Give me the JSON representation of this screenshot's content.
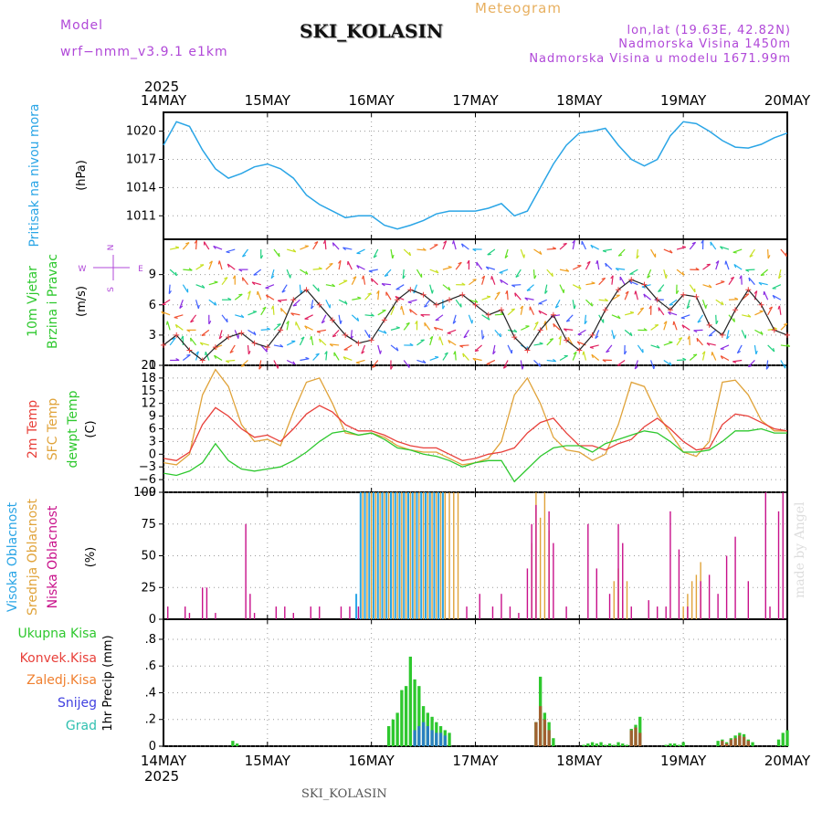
{
  "header": {
    "model_label": "Model",
    "model": "wrf−nmm_v3.9.1  e1km",
    "title": "SKI_KOLASIN",
    "meteogram": "Meteogram",
    "lonlat": "lon,lat (19.63E, 42.82N)",
    "elevation": "Nadmorska Visina 1450m",
    "model_elevation": "Nadmorska Visina u modelu 1671.99m",
    "footer": "SKI_KOLASIN",
    "credit": "made by Angel"
  },
  "colors": {
    "pressure": "#2aa5e6",
    "temp2m": "#e8403a",
    "sfc_temp": "#e0a33a",
    "dewpoint": "#2ec82e",
    "cloud_high": "#2aa5e6",
    "cloud_mid": "#e0a33a",
    "cloud_low": "#c8108a",
    "precip_total": "#2ec82e",
    "precip_conv": "#e8403a",
    "precip_frozen": "#f08030",
    "snow": "#4040e0",
    "graupel": "#30c0b0",
    "wind_speed": "#222222",
    "purple_label": "#b048d8"
  },
  "time_axis": {
    "year": "2025",
    "ticks": [
      "14MAY",
      "15MAY",
      "16MAY",
      "17MAY",
      "18MAY",
      "19MAY",
      "20MAY"
    ],
    "hours": 144
  },
  "chart_data": [
    {
      "type": "line",
      "name": "pressure",
      "label": "Pritisak na nivou mora",
      "unit": "(hPa)",
      "ylim": [
        1008.5,
        1022
      ],
      "yticks": [
        1011,
        1014,
        1017,
        1020
      ],
      "grid": true,
      "series": [
        {
          "name": "Pritisak na nivou mora",
          "x": [
            0,
            3,
            6,
            9,
            12,
            15,
            18,
            21,
            24,
            27,
            30,
            33,
            36,
            39,
            42,
            45,
            48,
            51,
            54,
            57,
            60,
            63,
            66,
            69,
            72,
            75,
            78,
            81,
            84,
            87,
            90,
            93,
            96,
            99,
            102,
            105,
            108,
            111,
            114,
            117,
            120,
            123,
            126,
            129,
            132,
            135,
            138,
            141,
            144
          ],
          "values": [
            1018.5,
            1021.0,
            1020.5,
            1018.0,
            1016.0,
            1015.0,
            1015.5,
            1016.2,
            1016.5,
            1016.0,
            1015.0,
            1013.2,
            1012.2,
            1011.5,
            1010.8,
            1011.0,
            1011.0,
            1010.0,
            1009.6,
            1010.0,
            1010.5,
            1011.2,
            1011.5,
            1011.5,
            1011.5,
            1011.8,
            1012.3,
            1011.0,
            1011.5,
            1014.0,
            1016.5,
            1018.5,
            1019.8,
            1020.0,
            1020.3,
            1018.5,
            1017.0,
            1016.3,
            1017.0,
            1019.5,
            1021.0,
            1020.8,
            1020.0,
            1019.0,
            1018.3,
            1018.2,
            1018.6,
            1019.3,
            1019.8
          ]
        }
      ]
    },
    {
      "type": "line",
      "name": "wind",
      "label_1": "10m Vjetar",
      "label_2": "Brzina i Pravac",
      "unit": "(m/s)",
      "compass": [
        "N",
        "W",
        "E",
        "S"
      ],
      "ylim": [
        0,
        12.5
      ],
      "yticks": [
        0,
        3,
        6,
        9
      ],
      "grid": true,
      "series": [
        {
          "name": "Brzina",
          "x": [
            0,
            3,
            6,
            9,
            12,
            15,
            18,
            21,
            24,
            27,
            30,
            33,
            36,
            39,
            42,
            45,
            48,
            51,
            54,
            57,
            60,
            63,
            66,
            69,
            72,
            75,
            78,
            81,
            84,
            87,
            90,
            93,
            96,
            99,
            102,
            105,
            108,
            111,
            114,
            117,
            120,
            123,
            126,
            129,
            132,
            135,
            138,
            141,
            144
          ],
          "values": [
            2.0,
            3.0,
            1.5,
            0.5,
            1.8,
            2.8,
            3.2,
            2.2,
            1.8,
            3.5,
            6.5,
            7.5,
            6.0,
            4.5,
            3.0,
            2.2,
            2.5,
            4.5,
            6.5,
            7.5,
            7.0,
            6.0,
            6.5,
            7.0,
            6.0,
            5.0,
            5.5,
            2.8,
            1.5,
            3.5,
            5.0,
            2.5,
            1.5,
            3.0,
            5.5,
            7.5,
            8.5,
            8.0,
            6.5,
            5.5,
            7.0,
            6.8,
            4.0,
            3.0,
            5.5,
            7.5,
            6.0,
            3.5,
            3.0
          ]
        }
      ],
      "arrow_columns": 48
    },
    {
      "type": "line",
      "name": "temperature",
      "label_1": "2m Temp",
      "label_2": "SFC Temp",
      "label_3": "dewpt Temp",
      "unit": "(C)",
      "ylim": [
        -9,
        21
      ],
      "yticks": [
        -9,
        -6,
        -3,
        0,
        3,
        6,
        9,
        12,
        15,
        18,
        21
      ],
      "grid": true,
      "series": [
        {
          "name": "2m Temp",
          "x": [
            0,
            3,
            6,
            9,
            12,
            15,
            18,
            21,
            24,
            27,
            30,
            33,
            36,
            39,
            42,
            45,
            48,
            51,
            54,
            57,
            60,
            63,
            66,
            69,
            72,
            75,
            78,
            81,
            84,
            87,
            90,
            93,
            96,
            99,
            102,
            105,
            108,
            111,
            114,
            117,
            120,
            123,
            126,
            129,
            132,
            135,
            138,
            141,
            144
          ],
          "values": [
            -1.0,
            -1.5,
            0.5,
            7.0,
            11.0,
            9.0,
            6.0,
            4.0,
            4.5,
            3.0,
            6.0,
            9.5,
            11.5,
            10.0,
            7.0,
            5.5,
            5.5,
            4.5,
            3.0,
            2.0,
            1.5,
            1.5,
            0.0,
            -1.5,
            -1.0,
            0.0,
            0.5,
            1.5,
            5.0,
            7.5,
            8.5,
            5.0,
            2.0,
            2.0,
            1.0,
            2.5,
            3.5,
            6.5,
            8.5,
            6.0,
            3.0,
            1.0,
            1.5,
            7.0,
            9.5,
            9.0,
            7.5,
            6.0,
            5.5
          ]
        },
        {
          "name": "SFC Temp",
          "x": [
            0,
            3,
            6,
            9,
            12,
            15,
            18,
            21,
            24,
            27,
            30,
            33,
            36,
            39,
            42,
            45,
            48,
            51,
            54,
            57,
            60,
            63,
            66,
            69,
            72,
            75,
            78,
            81,
            84,
            87,
            90,
            93,
            96,
            99,
            102,
            105,
            108,
            111,
            114,
            117,
            120,
            123,
            126,
            129,
            132,
            135,
            138,
            141,
            144
          ],
          "values": [
            -2.0,
            -2.5,
            0.0,
            14.0,
            20.0,
            16.0,
            7.0,
            3.0,
            3.5,
            2.0,
            10.0,
            17.0,
            18.0,
            12.0,
            5.0,
            4.5,
            5.0,
            4.0,
            2.0,
            1.0,
            0.5,
            0.5,
            -1.0,
            -2.5,
            -2.0,
            -1.0,
            3.0,
            14.0,
            18.0,
            12.0,
            4.0,
            1.0,
            0.5,
            -1.5,
            0.0,
            7.0,
            17.0,
            16.0,
            9.5,
            5.0,
            0.5,
            -0.5,
            3.0,
            17.0,
            17.5,
            14.0,
            8.0,
            5.5,
            5.5
          ]
        },
        {
          "name": "dewpt Temp",
          "x": [
            0,
            3,
            6,
            9,
            12,
            15,
            18,
            21,
            24,
            27,
            30,
            33,
            36,
            39,
            42,
            45,
            48,
            51,
            54,
            57,
            60,
            63,
            66,
            69,
            72,
            75,
            78,
            81,
            84,
            87,
            90,
            93,
            96,
            99,
            102,
            105,
            108,
            111,
            114,
            117,
            120,
            123,
            126,
            129,
            132,
            135,
            138,
            141,
            144
          ],
          "values": [
            -4.5,
            -5.0,
            -4.0,
            -2.0,
            2.5,
            -1.5,
            -3.5,
            -4.0,
            -3.5,
            -3.0,
            -1.5,
            0.5,
            3.0,
            5.0,
            5.5,
            4.5,
            5.0,
            3.5,
            1.5,
            1.0,
            0.0,
            -0.5,
            -1.5,
            -3.0,
            -2.0,
            -1.5,
            -1.5,
            -6.5,
            -3.5,
            -0.5,
            1.5,
            2.0,
            2.0,
            0.5,
            2.5,
            3.5,
            4.5,
            5.5,
            5.0,
            3.0,
            0.5,
            0.5,
            1.0,
            3.0,
            5.5,
            5.5,
            6.0,
            5.0,
            5.0
          ]
        }
      ]
    },
    {
      "type": "bar",
      "name": "clouds",
      "label_1": "Visoka Oblacnost",
      "label_2": "Srednja Oblacnost",
      "label_3": "Niska Oblacnost",
      "unit": "(%)",
      "ylim": [
        0,
        100
      ],
      "yticks": [
        0,
        25,
        50,
        75,
        100
      ],
      "grid": true,
      "series": [
        {
          "name": "Visoka Oblacnost",
          "x": [
            44.5,
            45.5,
            46.5,
            47.5,
            48.5,
            49.5,
            50.5,
            51.5,
            52.5,
            53.5,
            54.5,
            55.5,
            56.5,
            57.5,
            58.5,
            59.5,
            60.5,
            61.5,
            62.5,
            63.5,
            64.5
          ],
          "values": [
            20,
            100,
            100,
            100,
            100,
            100,
            100,
            100,
            100,
            100,
            100,
            100,
            100,
            100,
            100,
            100,
            100,
            100,
            100,
            100,
            100
          ]
        },
        {
          "name": "Srednja Oblacnost",
          "x": [
            46,
            47,
            48,
            49,
            50,
            51,
            52,
            53,
            54,
            55,
            56,
            57,
            58,
            59,
            60,
            61,
            62,
            63,
            64,
            65,
            66,
            67,
            68,
            85,
            86,
            87,
            88,
            89,
            104,
            105,
            106,
            107,
            120,
            121,
            122,
            123,
            124
          ],
          "values": [
            100,
            100,
            100,
            100,
            100,
            100,
            100,
            100,
            100,
            100,
            100,
            100,
            100,
            100,
            100,
            100,
            100,
            100,
            100,
            100,
            100,
            100,
            100,
            60,
            100,
            80,
            100,
            70,
            30,
            40,
            15,
            30,
            10,
            20,
            30,
            35,
            45
          ]
        },
        {
          "name": "Niska Oblacnost",
          "x": [
            1,
            5,
            6,
            9,
            10,
            12,
            19,
            20,
            21,
            26,
            28,
            30,
            34,
            36,
            41,
            43,
            45,
            70,
            73,
            76,
            78,
            80,
            82,
            84,
            85,
            86,
            89,
            90,
            93,
            98,
            100,
            103,
            105,
            106,
            108,
            112,
            114,
            116,
            117,
            119,
            121,
            124,
            126,
            128,
            130,
            132,
            135,
            139,
            140,
            142,
            143
          ],
          "values": [
            10,
            10,
            5,
            25,
            25,
            5,
            75,
            20,
            5,
            10,
            10,
            5,
            10,
            10,
            10,
            10,
            10,
            10,
            20,
            10,
            20,
            10,
            5,
            40,
            75,
            90,
            85,
            60,
            10,
            75,
            40,
            20,
            75,
            60,
            10,
            15,
            10,
            10,
            85,
            55,
            10,
            30,
            35,
            20,
            50,
            65,
            30,
            100,
            10,
            85,
            100
          ]
        }
      ]
    },
    {
      "type": "bar",
      "name": "precipitation",
      "label_1": "Ukupna Kisa",
      "label_2": "Konvek.Kisa",
      "label_3": "Zaledj.Kisa",
      "label_4": "Snijeg",
      "label_5": "Grad",
      "unit": "1hr Precip (mm)",
      "ylim": [
        0,
        0.95
      ],
      "yticks": [
        0,
        0.2,
        0.4,
        0.6,
        0.8
      ],
      "grid": true,
      "series": [
        {
          "name": "Ukupna Kisa",
          "x": [
            16,
            17,
            52,
            53,
            54,
            55,
            56,
            57,
            58,
            59,
            60,
            61,
            62,
            63,
            64,
            65,
            66,
            86,
            87,
            88,
            89,
            90,
            97,
            98,
            99,
            100,
            101,
            102,
            103,
            104,
            105,
            106,
            107,
            108,
            109,
            110,
            116,
            117,
            118,
            119,
            120,
            128,
            129,
            130,
            131,
            132,
            133,
            134,
            135,
            136,
            142,
            143,
            144
          ],
          "values": [
            0.04,
            0.02,
            0.15,
            0.2,
            0.25,
            0.42,
            0.45,
            0.67,
            0.5,
            0.45,
            0.3,
            0.25,
            0.22,
            0.18,
            0.15,
            0.12,
            0.1,
            0.18,
            0.52,
            0.25,
            0.18,
            0.06,
            0.01,
            0.02,
            0.03,
            0.02,
            0.03,
            0.01,
            0.02,
            0.01,
            0.03,
            0.02,
            0.01,
            0.13,
            0.16,
            0.22,
            0.01,
            0.02,
            0.02,
            0.01,
            0.03,
            0.04,
            0.05,
            0.03,
            0.06,
            0.08,
            0.1,
            0.09,
            0.05,
            0.03,
            0.05,
            0.1,
            0.12
          ]
        },
        {
          "name": "Konvek.Kisa",
          "x": [
            86,
            87,
            88,
            89,
            108,
            109,
            110,
            129,
            130,
            131,
            132,
            133,
            134,
            135
          ],
          "values": [
            0.18,
            0.3,
            0.2,
            0.12,
            0.12,
            0.14,
            0.1,
            0.04,
            0.02,
            0.05,
            0.06,
            0.08,
            0.07,
            0.04
          ]
        },
        {
          "name": "Snijeg",
          "x": [
            58,
            59,
            60,
            61,
            62,
            63,
            64,
            65
          ],
          "values": [
            0.12,
            0.15,
            0.18,
            0.15,
            0.12,
            0.1,
            0.1,
            0.08
          ]
        }
      ]
    }
  ]
}
